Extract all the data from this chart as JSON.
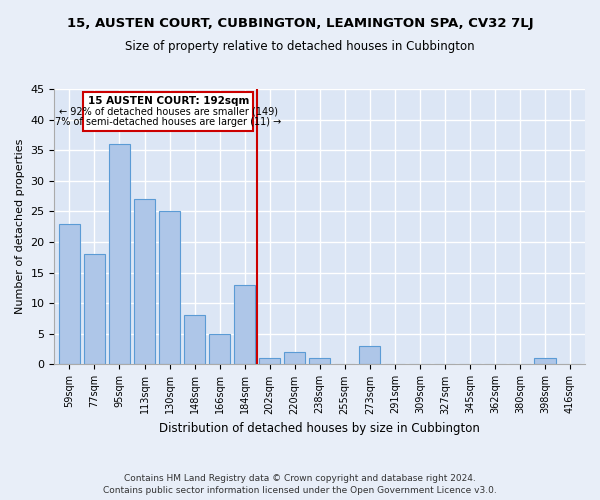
{
  "title1": "15, AUSTEN COURT, CUBBINGTON, LEAMINGTON SPA, CV32 7LJ",
  "title2": "Size of property relative to detached houses in Cubbington",
  "xlabel": "Distribution of detached houses by size in Cubbington",
  "ylabel": "Number of detached properties",
  "categories": [
    "59sqm",
    "77sqm",
    "95sqm",
    "113sqm",
    "130sqm",
    "148sqm",
    "166sqm",
    "184sqm",
    "202sqm",
    "220sqm",
    "238sqm",
    "255sqm",
    "273sqm",
    "291sqm",
    "309sqm",
    "327sqm",
    "345sqm",
    "362sqm",
    "380sqm",
    "398sqm",
    "416sqm"
  ],
  "values": [
    23,
    18,
    36,
    27,
    25,
    8,
    5,
    13,
    1,
    2,
    1,
    0,
    3,
    0,
    0,
    0,
    0,
    0,
    0,
    1,
    0
  ],
  "bar_color": "#aec6e8",
  "bar_edge_color": "#5b9bd5",
  "reference_line_x": 7.5,
  "reference_line_label": "15 AUSTEN COURT: 192sqm",
  "annotation_line1": "← 92% of detached houses are smaller (149)",
  "annotation_line2": "7% of semi-detached houses are larger (11) →",
  "annotation_box_color": "#ffffff",
  "annotation_box_edge": "#cc0000",
  "vline_color": "#cc0000",
  "ylim": [
    0,
    45
  ],
  "yticks": [
    0,
    5,
    10,
    15,
    20,
    25,
    30,
    35,
    40,
    45
  ],
  "bg_color": "#dce6f5",
  "grid_color": "#ffffff",
  "fig_bg_color": "#e8eef8",
  "footer1": "Contains HM Land Registry data © Crown copyright and database right 2024.",
  "footer2": "Contains public sector information licensed under the Open Government Licence v3.0."
}
